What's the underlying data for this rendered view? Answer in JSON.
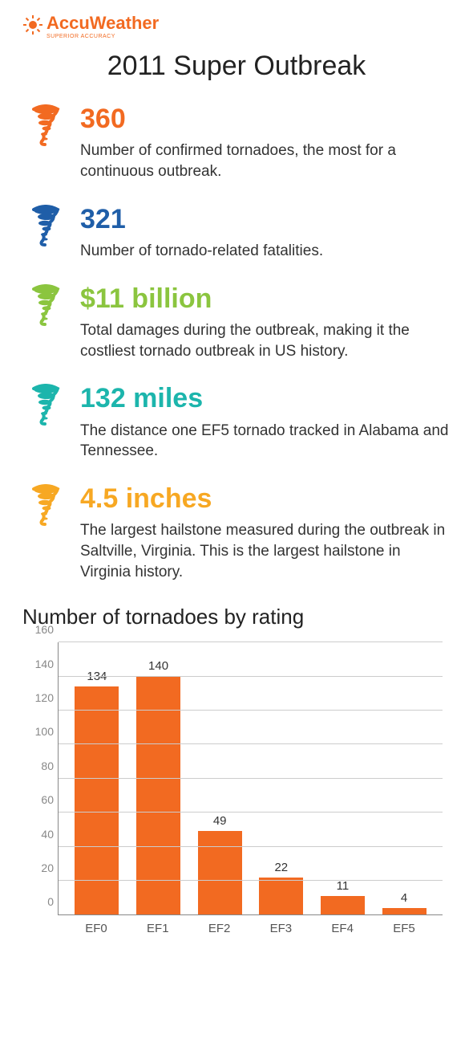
{
  "brand": {
    "name": "AccuWeather",
    "tagline": "SUPERIOR ACCURACY",
    "color": "#f26a21"
  },
  "title": "2011 Super Outbreak",
  "stats": [
    {
      "value": "360",
      "desc": "Number of confirmed tornadoes, the most for a continuous outbreak.",
      "color": "#f26a21"
    },
    {
      "value": "321",
      "desc": "Number of tornado-related fatalities.",
      "color": "#1f5ea8"
    },
    {
      "value": "$11 billion",
      "desc": "Total damages during the outbreak, making it the costliest tornado outbreak in US history.",
      "color": "#8bc53f"
    },
    {
      "value": "132 miles",
      "desc": "The distance one EF5 tornado tracked in Alabama and Tennessee.",
      "color": "#1cb5ac"
    },
    {
      "value": "4.5 inches",
      "desc": "The largest hailstone measured during the outbreak in Saltville, Virginia. This is the largest hailstone in Virginia history.",
      "color": "#f7a823"
    }
  ],
  "chart": {
    "title": "Number of tornadoes by rating",
    "type": "bar",
    "categories": [
      "EF0",
      "EF1",
      "EF2",
      "EF3",
      "EF4",
      "EF5"
    ],
    "values": [
      134,
      140,
      49,
      22,
      11,
      4
    ],
    "bar_color": "#f26a21",
    "ymax": 160,
    "ytick_step": 20,
    "grid_color": "#cccccc",
    "axis_color": "#888888",
    "label_fontsize": 15,
    "value_fontsize": 15,
    "background_color": "#ffffff"
  }
}
